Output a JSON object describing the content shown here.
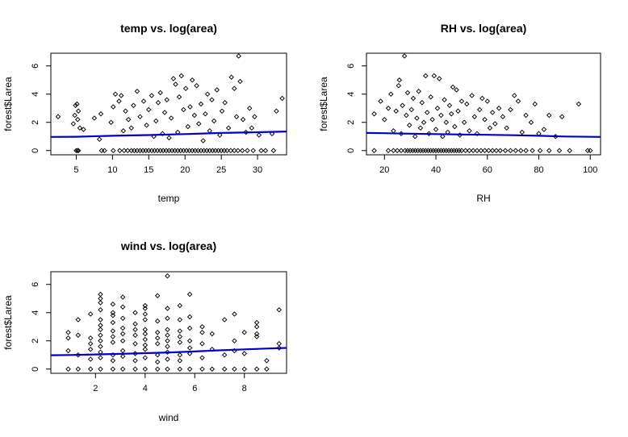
{
  "chart_data": [
    {
      "type": "scatter",
      "title": "temp vs. log(area)",
      "xlabel": "temp",
      "ylabel": "forest$Larea",
      "xlim": [
        1.5,
        34.0
      ],
      "ylim": [
        -0.3,
        6.9
      ],
      "xticks": [
        5,
        10,
        15,
        20,
        25,
        30
      ],
      "yticks": [
        0,
        2,
        4,
        6
      ],
      "smooth_color": "#0000cc",
      "smooth": [
        [
          1.5,
          0.97
        ],
        [
          5,
          0.98
        ],
        [
          10,
          1.05
        ],
        [
          15,
          1.1
        ],
        [
          20,
          1.17
        ],
        [
          25,
          1.25
        ],
        [
          30,
          1.3
        ],
        [
          34,
          1.35
        ]
      ],
      "points": [
        [
          2.5,
          2.4
        ],
        [
          4.6,
          1.9
        ],
        [
          4.8,
          2.5
        ],
        [
          4.9,
          3.2
        ],
        [
          5.1,
          3.3
        ],
        [
          5.2,
          2.2
        ],
        [
          5.3,
          2.8
        ],
        [
          5.0,
          0.0
        ],
        [
          5.3,
          0.0
        ],
        [
          5.5,
          1.6
        ],
        [
          6.0,
          1.5
        ],
        [
          7.5,
          2.3
        ],
        [
          8.2,
          0.8
        ],
        [
          8.4,
          2.6
        ],
        [
          8.9,
          0.0
        ],
        [
          9.8,
          2.0
        ],
        [
          10.1,
          3.1
        ],
        [
          10.4,
          4.0
        ],
        [
          10.9,
          3.5
        ],
        [
          11.2,
          3.9
        ],
        [
          11.5,
          1.4
        ],
        [
          11.8,
          2.8
        ],
        [
          12.2,
          2.2
        ],
        [
          12.6,
          1.6
        ],
        [
          12.9,
          3.2
        ],
        [
          13.4,
          4.2
        ],
        [
          13.8,
          2.4
        ],
        [
          14.3,
          3.5
        ],
        [
          14.7,
          1.8
        ],
        [
          15.0,
          2.9
        ],
        [
          15.4,
          3.9
        ],
        [
          15.7,
          1.0
        ],
        [
          16.0,
          2.1
        ],
        [
          16.3,
          3.4
        ],
        [
          16.6,
          4.1
        ],
        [
          16.9,
          1.2
        ],
        [
          17.2,
          2.7
        ],
        [
          17.5,
          3.6
        ],
        [
          17.8,
          0.9
        ],
        [
          18.1,
          2.3
        ],
        [
          18.4,
          5.1
        ],
        [
          18.7,
          4.7
        ],
        [
          19.0,
          1.3
        ],
        [
          19.2,
          3.8
        ],
        [
          19.5,
          5.3
        ],
        [
          19.8,
          2.9
        ],
        [
          20.1,
          4.4
        ],
        [
          20.4,
          1.7
        ],
        [
          20.7,
          3.1
        ],
        [
          21.0,
          5.0
        ],
        [
          21.3,
          2.5
        ],
        [
          21.6,
          4.6
        ],
        [
          21.9,
          1.9
        ],
        [
          22.2,
          3.3
        ],
        [
          22.5,
          0.7
        ],
        [
          22.8,
          2.6
        ],
        [
          23.1,
          4.0
        ],
        [
          23.4,
          1.4
        ],
        [
          23.7,
          3.6
        ],
        [
          24.0,
          2.1
        ],
        [
          24.4,
          4.3
        ],
        [
          24.8,
          1.1
        ],
        [
          25.1,
          2.8
        ],
        [
          25.5,
          3.4
        ],
        [
          26.0,
          1.6
        ],
        [
          26.4,
          5.2
        ],
        [
          26.8,
          4.4
        ],
        [
          27.1,
          2.4
        ],
        [
          27.4,
          6.7
        ],
        [
          27.6,
          4.9
        ],
        [
          28.0,
          2.2
        ],
        [
          28.4,
          1.3
        ],
        [
          28.9,
          3.0
        ],
        [
          29.2,
          1.6
        ],
        [
          29.6,
          2.4
        ],
        [
          30.2,
          1.1
        ],
        [
          31.1,
          0.0
        ],
        [
          32.0,
          1.2
        ],
        [
          32.6,
          2.8
        ],
        [
          33.4,
          3.7
        ]
      ],
      "zero_x": [
        5.2,
        8.5,
        10.1,
        11.0,
        11.6,
        12.1,
        12.6,
        13.0,
        13.4,
        13.8,
        14.2,
        14.6,
        15.0,
        15.4,
        15.8,
        16.2,
        16.6,
        17.0,
        17.4,
        17.8,
        18.2,
        18.6,
        19.0,
        19.4,
        19.8,
        20.2,
        20.6,
        21.0,
        21.4,
        21.8,
        22.2,
        22.6,
        23.0,
        23.4,
        23.8,
        24.2,
        24.6,
        25.0,
        25.4,
        25.8,
        26.3,
        26.8,
        27.3,
        27.9,
        28.6,
        29.4,
        30.5,
        32.2
      ]
    },
    {
      "type": "scatter",
      "title": "RH vs. log(area)",
      "xlabel": "RH",
      "ylabel": "forest$Larea",
      "xlim": [
        13,
        104
      ],
      "ylim": [
        -0.3,
        6.9
      ],
      "xticks": [
        20,
        40,
        60,
        80,
        100
      ],
      "yticks": [
        0,
        2,
        4,
        6
      ],
      "smooth_color": "#0000cc",
      "smooth": [
        [
          13,
          1.25
        ],
        [
          20,
          1.23
        ],
        [
          30,
          1.2
        ],
        [
          40,
          1.17
        ],
        [
          50,
          1.14
        ],
        [
          60,
          1.12
        ],
        [
          70,
          1.09
        ],
        [
          80,
          1.05
        ],
        [
          90,
          1.0
        ],
        [
          104,
          0.97
        ]
      ],
      "points": [
        [
          16.0,
          2.6
        ],
        [
          18.5,
          3.5
        ],
        [
          20.0,
          2.2
        ],
        [
          21.5,
          3.0
        ],
        [
          22.5,
          4.0
        ],
        [
          23.5,
          1.4
        ],
        [
          24.5,
          2.8
        ],
        [
          25.5,
          4.6
        ],
        [
          25.8,
          5.0
        ],
        [
          26.5,
          1.2
        ],
        [
          27.0,
          3.2
        ],
        [
          27.8,
          6.7
        ],
        [
          28.5,
          2.5
        ],
        [
          29.0,
          4.1
        ],
        [
          29.7,
          1.8
        ],
        [
          30.5,
          2.9
        ],
        [
          31.2,
          3.7
        ],
        [
          31.9,
          1.0
        ],
        [
          32.6,
          2.3
        ],
        [
          33.3,
          4.2
        ],
        [
          34.0,
          1.6
        ],
        [
          34.6,
          3.4
        ],
        [
          35.3,
          2.0
        ],
        [
          36.0,
          5.3
        ],
        [
          36.6,
          2.7
        ],
        [
          37.3,
          1.2
        ],
        [
          38.0,
          3.8
        ],
        [
          38.6,
          2.2
        ],
        [
          39.3,
          5.3
        ],
        [
          40.0,
          1.5
        ],
        [
          40.6,
          3.0
        ],
        [
          41.3,
          5.1
        ],
        [
          42.0,
          2.5
        ],
        [
          42.6,
          1.0
        ],
        [
          43.3,
          3.6
        ],
        [
          44.0,
          2.0
        ],
        [
          44.6,
          1.3
        ],
        [
          45.3,
          3.2
        ],
        [
          46.0,
          2.6
        ],
        [
          46.6,
          4.5
        ],
        [
          47.3,
          1.7
        ],
        [
          48.0,
          4.3
        ],
        [
          48.6,
          2.8
        ],
        [
          49.3,
          1.1
        ],
        [
          50.0,
          3.5
        ],
        [
          51.0,
          2.0
        ],
        [
          52.0,
          3.3
        ],
        [
          53.0,
          1.4
        ],
        [
          54.0,
          3.9
        ],
        [
          55.0,
          2.4
        ],
        [
          56.0,
          1.2
        ],
        [
          57.0,
          2.9
        ],
        [
          58.0,
          3.7
        ],
        [
          59.0,
          2.2
        ],
        [
          60.0,
          3.5
        ],
        [
          61.0,
          1.6
        ],
        [
          62.0,
          2.7
        ],
        [
          63.0,
          1.9
        ],
        [
          64.5,
          3.0
        ],
        [
          66.0,
          2.4
        ],
        [
          67.5,
          1.6
        ],
        [
          69.0,
          2.9
        ],
        [
          70.5,
          3.9
        ],
        [
          72.0,
          3.5
        ],
        [
          73.5,
          1.3
        ],
        [
          75.0,
          2.5
        ],
        [
          77.0,
          2.0
        ],
        [
          78.5,
          3.3
        ],
        [
          80.0,
          1.2
        ],
        [
          82.0,
          1.5
        ],
        [
          84.0,
          2.5
        ],
        [
          86.5,
          1.0
        ],
        [
          89.0,
          2.4
        ],
        [
          95.5,
          3.3
        ],
        [
          99.0,
          0.0
        ]
      ],
      "zero_x": [
        16.0,
        21.5,
        23.5,
        25.0,
        26.5,
        28.0,
        29.0,
        30.0,
        31.0,
        32.0,
        33.0,
        34.0,
        35.0,
        36.0,
        37.0,
        38.0,
        39.0,
        40.0,
        41.0,
        42.0,
        43.0,
        44.0,
        45.0,
        46.0,
        47.0,
        48.0,
        49.0,
        50.0,
        51.5,
        53.0,
        54.5,
        56.0,
        57.5,
        59.0,
        60.5,
        62.0,
        63.5,
        65.0,
        67.0,
        69.0,
        71.0,
        73.0,
        75.0,
        77.5,
        80.5,
        84.0,
        88.0,
        92.0,
        100.0
      ]
    },
    {
      "type": "scatter",
      "title": "wind vs. log(area)",
      "xlabel": "wind",
      "ylabel": "forest$Larea",
      "xlim": [
        0.2,
        9.7
      ],
      "ylim": [
        -0.3,
        6.9
      ],
      "xticks": [
        2,
        4,
        6,
        8
      ],
      "yticks": [
        0,
        2,
        4,
        6
      ],
      "smooth_color": "#0000cc",
      "smooth": [
        [
          0.2,
          0.98
        ],
        [
          1,
          1.0
        ],
        [
          2,
          1.04
        ],
        [
          3,
          1.08
        ],
        [
          4,
          1.13
        ],
        [
          5,
          1.18
        ],
        [
          6,
          1.25
        ],
        [
          7,
          1.33
        ],
        [
          8,
          1.4
        ],
        [
          9,
          1.46
        ],
        [
          9.7,
          1.5
        ]
      ],
      "points": [
        [
          0.9,
          1.3
        ],
        [
          0.9,
          2.2
        ],
        [
          0.9,
          2.6
        ],
        [
          1.3,
          1.0
        ],
        [
          1.3,
          3.5
        ],
        [
          1.3,
          2.4
        ],
        [
          1.8,
          1.4
        ],
        [
          1.8,
          2.2
        ],
        [
          1.8,
          1.8
        ],
        [
          1.8,
          3.9
        ],
        [
          1.8,
          0.7
        ],
        [
          2.2,
          1.2
        ],
        [
          2.2,
          2.0
        ],
        [
          2.2,
          2.8
        ],
        [
          2.2,
          3.5
        ],
        [
          2.2,
          4.2
        ],
        [
          2.2,
          5.3
        ],
        [
          2.2,
          1.6
        ],
        [
          2.2,
          0.8
        ],
        [
          2.2,
          2.4
        ],
        [
          2.2,
          3.1
        ],
        [
          2.2,
          4.7
        ],
        [
          2.2,
          5.0
        ],
        [
          2.7,
          1.0
        ],
        [
          2.7,
          1.9
        ],
        [
          2.7,
          2.7
        ],
        [
          2.7,
          3.3
        ],
        [
          2.7,
          4.0
        ],
        [
          2.7,
          4.6
        ],
        [
          2.7,
          2.3
        ],
        [
          2.7,
          0.6
        ],
        [
          2.7,
          3.8
        ],
        [
          3.1,
          1.3
        ],
        [
          3.1,
          2.0
        ],
        [
          3.1,
          2.9
        ],
        [
          3.1,
          3.6
        ],
        [
          3.1,
          4.4
        ],
        [
          3.1,
          5.1
        ],
        [
          3.1,
          0.9
        ],
        [
          3.1,
          2.5
        ],
        [
          3.6,
          1.1
        ],
        [
          3.6,
          1.8
        ],
        [
          3.6,
          2.4
        ],
        [
          3.6,
          3.2
        ],
        [
          3.6,
          4.0
        ],
        [
          3.6,
          0.6
        ],
        [
          3.6,
          2.8
        ],
        [
          4.0,
          1.4
        ],
        [
          4.0,
          2.1
        ],
        [
          4.0,
          2.8
        ],
        [
          4.0,
          3.5
        ],
        [
          4.0,
          4.3
        ],
        [
          4.0,
          0.8
        ],
        [
          4.0,
          1.7
        ],
        [
          4.0,
          2.5
        ],
        [
          4.0,
          3.9
        ],
        [
          4.0,
          4.5
        ],
        [
          4.5,
          1.0
        ],
        [
          4.5,
          1.8
        ],
        [
          4.5,
          2.6
        ],
        [
          4.5,
          3.4
        ],
        [
          4.5,
          5.2
        ],
        [
          4.5,
          0.5
        ],
        [
          4.5,
          2.2
        ],
        [
          4.9,
          1.2
        ],
        [
          4.9,
          2.0
        ],
        [
          4.9,
          2.8
        ],
        [
          4.9,
          3.6
        ],
        [
          4.9,
          4.3
        ],
        [
          4.9,
          6.6
        ],
        [
          4.9,
          1.6
        ],
        [
          4.9,
          2.4
        ],
        [
          4.9,
          0.7
        ],
        [
          5.4,
          1.0
        ],
        [
          5.4,
          1.9
        ],
        [
          5.4,
          2.7
        ],
        [
          5.4,
          3.5
        ],
        [
          5.4,
          4.5
        ],
        [
          5.4,
          0.6
        ],
        [
          5.4,
          2.3
        ],
        [
          5.8,
          1.1
        ],
        [
          5.8,
          2.0
        ],
        [
          5.8,
          2.9
        ],
        [
          5.8,
          3.7
        ],
        [
          5.8,
          5.3
        ],
        [
          5.8,
          1.5
        ],
        [
          6.3,
          0.8
        ],
        [
          6.3,
          1.8
        ],
        [
          6.3,
          2.6
        ],
        [
          6.3,
          3.0
        ],
        [
          6.7,
          1.4
        ],
        [
          6.7,
          2.5
        ],
        [
          7.2,
          1.0
        ],
        [
          7.2,
          3.5
        ],
        [
          7.6,
          1.3
        ],
        [
          7.6,
          2.0
        ],
        [
          7.6,
          3.9
        ],
        [
          8.0,
          1.1
        ],
        [
          8.0,
          2.6
        ],
        [
          8.5,
          2.3
        ],
        [
          8.5,
          2.5
        ],
        [
          8.5,
          3.0
        ],
        [
          8.5,
          3.3
        ],
        [
          8.9,
          0.6
        ],
        [
          9.4,
          1.5
        ],
        [
          9.4,
          1.8
        ],
        [
          9.4,
          4.2
        ]
      ],
      "zero_x": [
        0.9,
        1.3,
        1.8,
        2.2,
        2.7,
        3.1,
        3.6,
        4.0,
        4.5,
        4.9,
        5.4,
        5.8,
        6.3,
        6.7,
        7.2,
        7.6,
        8.0,
        8.5,
        8.9
      ]
    }
  ]
}
